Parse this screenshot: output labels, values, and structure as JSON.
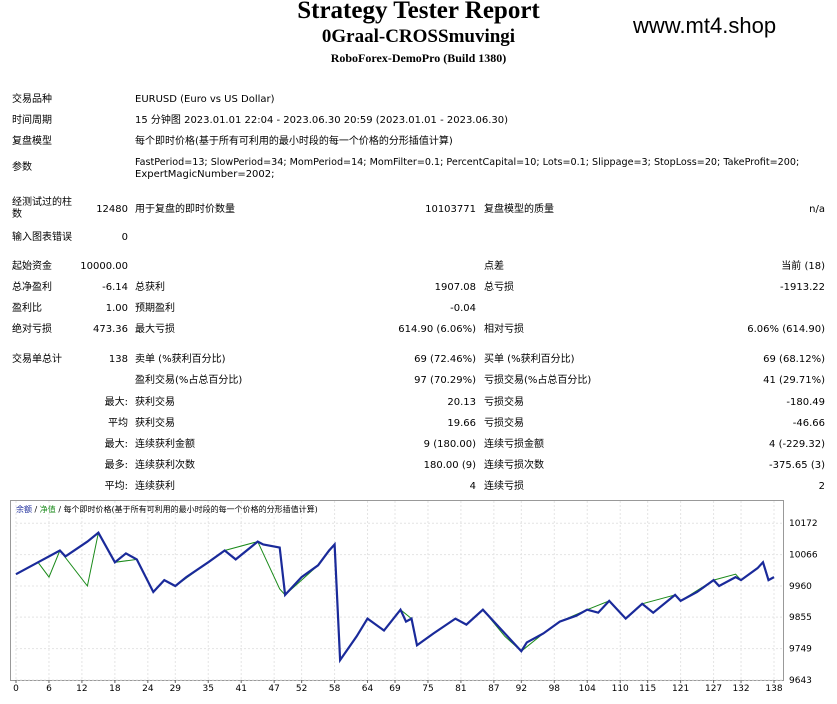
{
  "header": {
    "title": "Strategy Tester Report",
    "ea_name": "0Graal-CROSSmuvingi",
    "server": "RoboForex-DemoPro (Build 1380)",
    "watermark": "www.mt4.shop"
  },
  "settings": {
    "symbol_label": "交易品种",
    "symbol_value": "EURUSD (Euro vs US Dollar)",
    "period_label": "时间周期",
    "period_value": "15 分钟图 2023.01.01 22:04 - 2023.06.30 20:59 (2023.01.01 - 2023.06.30)",
    "model_label": "复盘模型",
    "model_value": "每个即时价格(基于所有可利用的最小时段的每一个价格的分形插值计算)",
    "params_label": "参数",
    "params_line1": "FastPeriod=13; SlowPeriod=34; MomPeriod=14; MomFilter=0.1; PercentCapital=10; Lots=0.1; Slippage=3; StopLoss=20; TakeProfit=200;",
    "params_line2": "ExpertMagicNumber=2002;"
  },
  "bars": {
    "bars_label_1": "经测试过的柱",
    "bars_label_2": "数",
    "bars_value": "12480",
    "ticks_label": "用于复盘的即时价数量",
    "ticks_value": "10103771",
    "quality_label": "复盘模型的质量",
    "quality_value": "n/a",
    "errors_label": "输入图表错误",
    "errors_value": "0"
  },
  "results": {
    "deposit_label": "起始资金",
    "deposit_value": "10000.00",
    "spread_label": "点差",
    "spread_value": "当前 (18)",
    "net_label": "总净盈利",
    "net_value": "-6.14",
    "gross_profit_label": "总获利",
    "gross_profit_value": "1907.08",
    "gross_loss_label": "总亏损",
    "gross_loss_value": "-1913.22",
    "pf_label": "盈利比",
    "pf_value": "1.00",
    "payoff_label": "预期盈利",
    "payoff_value": "-0.04",
    "abs_dd_label": "绝对亏损",
    "abs_dd_value": "473.36",
    "max_dd_label": "最大亏损",
    "max_dd_value": "614.90 (6.06%)",
    "rel_dd_label": "相对亏损",
    "rel_dd_value": "6.06% (614.90)",
    "trades_label": "交易单总计",
    "trades_value": "138",
    "short_label": "卖单 (%获利百分比)",
    "short_value": "69 (72.46%)",
    "long_label": "买单 (%获利百分比)",
    "long_value": "69 (68.12%)",
    "profit_trades_label": "盈利交易(%占总百分比)",
    "profit_trades_value": "97 (70.29%)",
    "loss_trades_label": "亏损交易(%占总百分比)",
    "loss_trades_value": "41 (29.71%)",
    "max_prefix": "最大:",
    "largest_profit_label": "获利交易",
    "largest_profit_value": "20.13",
    "largest_loss_label": "亏损交易",
    "largest_loss_value": "-180.49",
    "avg_prefix": "平均",
    "avg_profit_label": "获利交易",
    "avg_profit_value": "19.66",
    "avg_loss_label": "亏损交易",
    "avg_loss_value": "-46.66",
    "max2_prefix": "最大:",
    "cons_wins_label": "连续获利金额",
    "cons_wins_value": "9 (180.00)",
    "cons_losses_label": "连续亏损金额",
    "cons_losses_value": "4 (-229.32)",
    "most_prefix": "最多:",
    "cons_profit_label": "连续获利次数",
    "cons_profit_value": "180.00 (9)",
    "cons_loss_label": "连续亏损次数",
    "cons_loss_value": "-375.65 (3)",
    "avg2_prefix": "平均:",
    "avg_cons_wins_label": "连续获利",
    "avg_cons_wins_value": "4",
    "avg_cons_losses_label": "连续亏损",
    "avg_cons_losses_value": "2"
  },
  "chart_data": {
    "type": "line",
    "legend_balance": "余额",
    "legend_sep": " / ",
    "legend_equity": "净值",
    "legend_desc": " / 每个即时价格(基于所有可利用的最小时段的每一个价格的分形插值计算)",
    "y_ticks": [
      "10172",
      "10066",
      "9960",
      "9855",
      "9749",
      "9643"
    ],
    "y_tick_values": [
      10172,
      10066,
      9960,
      9855,
      9749,
      9643
    ],
    "x_ticks": [
      "0",
      "6",
      "12",
      "18",
      "24",
      "29",
      "35",
      "41",
      "47",
      "52",
      "58",
      "64",
      "69",
      "75",
      "81",
      "87",
      "92",
      "98",
      "104",
      "110",
      "115",
      "121",
      "127",
      "132",
      "138"
    ],
    "xlim": [
      0,
      138
    ],
    "ylim": [
      9643,
      10230
    ],
    "balance_color": "#1a2a9a",
    "equity_color": "#1a8a1a",
    "balance": [
      [
        0,
        10000
      ],
      [
        4,
        10040
      ],
      [
        8,
        10080
      ],
      [
        9,
        10060
      ],
      [
        13,
        10110
      ],
      [
        15,
        10140
      ],
      [
        18,
        10040
      ],
      [
        20,
        10070
      ],
      [
        22,
        10050
      ],
      [
        25,
        9940
      ],
      [
        27,
        9980
      ],
      [
        29,
        9960
      ],
      [
        31,
        9990
      ],
      [
        35,
        10040
      ],
      [
        38,
        10080
      ],
      [
        40,
        10050
      ],
      [
        44,
        10110
      ],
      [
        45,
        10100
      ],
      [
        48,
        10090
      ],
      [
        49,
        9930
      ],
      [
        52,
        9990
      ],
      [
        55,
        10030
      ],
      [
        57,
        10080
      ],
      [
        58,
        10100
      ],
      [
        59,
        9710
      ],
      [
        62,
        9790
      ],
      [
        64,
        9850
      ],
      [
        67,
        9810
      ],
      [
        70,
        9880
      ],
      [
        71,
        9840
      ],
      [
        72,
        9850
      ],
      [
        73,
        9760
      ],
      [
        76,
        9800
      ],
      [
        80,
        9850
      ],
      [
        82,
        9830
      ],
      [
        85,
        9880
      ],
      [
        89,
        9800
      ],
      [
        92,
        9740
      ],
      [
        93,
        9770
      ],
      [
        96,
        9800
      ],
      [
        99,
        9840
      ],
      [
        102,
        9860
      ],
      [
        104,
        9880
      ],
      [
        106,
        9870
      ],
      [
        108,
        9910
      ],
      [
        111,
        9850
      ],
      [
        114,
        9900
      ],
      [
        116,
        9870
      ],
      [
        120,
        9930
      ],
      [
        121,
        9910
      ],
      [
        124,
        9940
      ],
      [
        127,
        9980
      ],
      [
        128,
        9960
      ],
      [
        131,
        9990
      ],
      [
        132,
        9980
      ],
      [
        135,
        10020
      ],
      [
        136,
        10040
      ],
      [
        137,
        9980
      ],
      [
        138,
        9990
      ]
    ],
    "equity": [
      [
        0,
        10000
      ],
      [
        4,
        10040
      ],
      [
        6,
        9990
      ],
      [
        8,
        10080
      ],
      [
        13,
        9960
      ],
      [
        15,
        10140
      ],
      [
        18,
        10040
      ],
      [
        22,
        10050
      ],
      [
        25,
        9940
      ],
      [
        27,
        9980
      ],
      [
        29,
        9960
      ],
      [
        35,
        10040
      ],
      [
        38,
        10080
      ],
      [
        44,
        10110
      ],
      [
        48,
        9950
      ],
      [
        49,
        9930
      ],
      [
        55,
        10030
      ],
      [
        58,
        10100
      ],
      [
        59,
        9710
      ],
      [
        62,
        9790
      ],
      [
        64,
        9850
      ],
      [
        67,
        9810
      ],
      [
        70,
        9880
      ],
      [
        72,
        9850
      ],
      [
        73,
        9760
      ],
      [
        80,
        9850
      ],
      [
        82,
        9830
      ],
      [
        85,
        9880
      ],
      [
        89,
        9790
      ],
      [
        92,
        9740
      ],
      [
        96,
        9800
      ],
      [
        99,
        9840
      ],
      [
        104,
        9880
      ],
      [
        108,
        9910
      ],
      [
        111,
        9850
      ],
      [
        114,
        9900
      ],
      [
        120,
        9930
      ],
      [
        121,
        9910
      ],
      [
        127,
        9980
      ],
      [
        131,
        10000
      ],
      [
        132,
        9980
      ],
      [
        135,
        10020
      ],
      [
        136,
        10040
      ],
      [
        137,
        9980
      ],
      [
        138,
        9990
      ]
    ]
  }
}
